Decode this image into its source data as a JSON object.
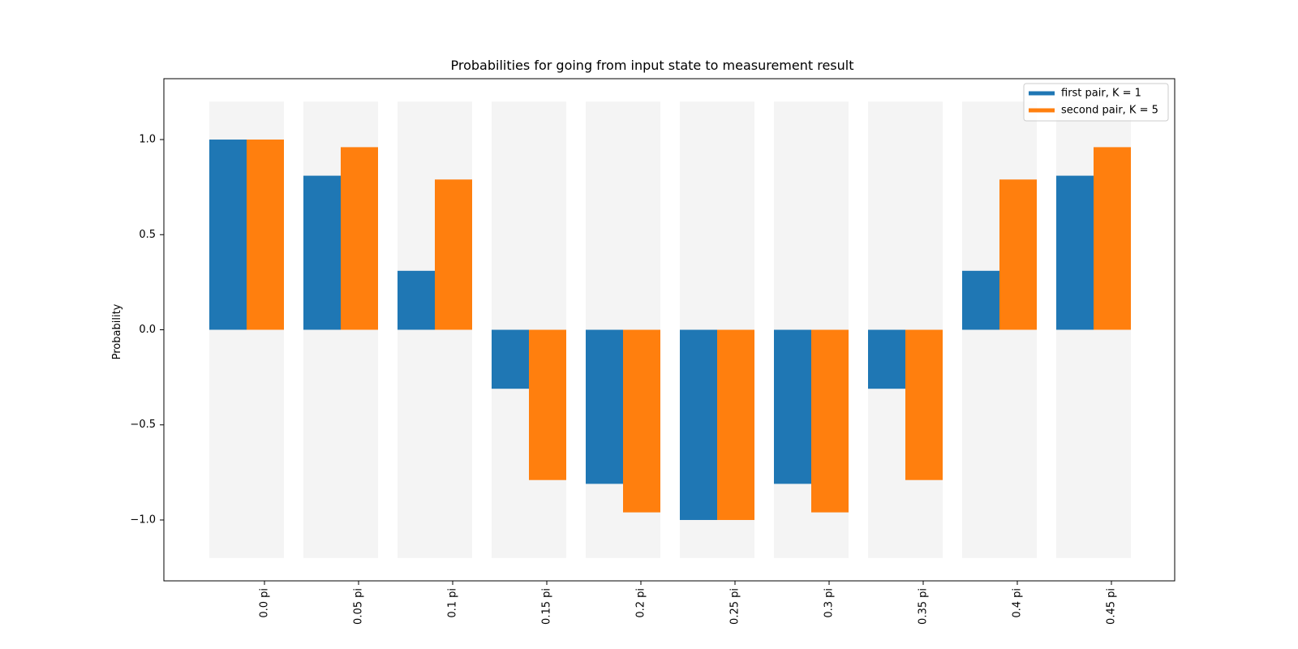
{
  "chart_data": {
    "type": "bar",
    "title": "Probabilities for going from input state to measurement result",
    "xlabel": "",
    "ylabel": "Probability",
    "categories": [
      "0.0 pi",
      "0.05 pi",
      "0.1 pi",
      "0.15 pi",
      "0.2 pi",
      "0.25 pi",
      "0.3 pi",
      "0.35 pi",
      "0.4 pi",
      "0.45 pi"
    ],
    "series": [
      {
        "name": "first pair, K = 1",
        "color": "#1f77b4",
        "values": [
          1.0,
          0.81,
          0.31,
          -0.31,
          -0.81,
          -1.0,
          -0.81,
          -0.31,
          0.31,
          0.81
        ]
      },
      {
        "name": "second pair, K = 5",
        "color": "#ff7f0e",
        "values": [
          1.0,
          0.96,
          0.79,
          -0.79,
          -0.96,
          -1.0,
          -0.96,
          -0.79,
          0.79,
          0.96
        ]
      }
    ],
    "background_band": {
      "color": "#f4f4f4",
      "range": [
        -1.2,
        1.2
      ]
    },
    "ylim": [
      -1.32,
      1.32
    ],
    "yticks": [
      1.0,
      0.5,
      0.0,
      -0.5,
      -1.0
    ],
    "ytick_labels": [
      "1.0",
      "0.5",
      "0.0",
      "−0.5",
      "−1.0"
    ],
    "grid": false,
    "legend_position": "top-right",
    "xtick_rotation": "vertical"
  }
}
